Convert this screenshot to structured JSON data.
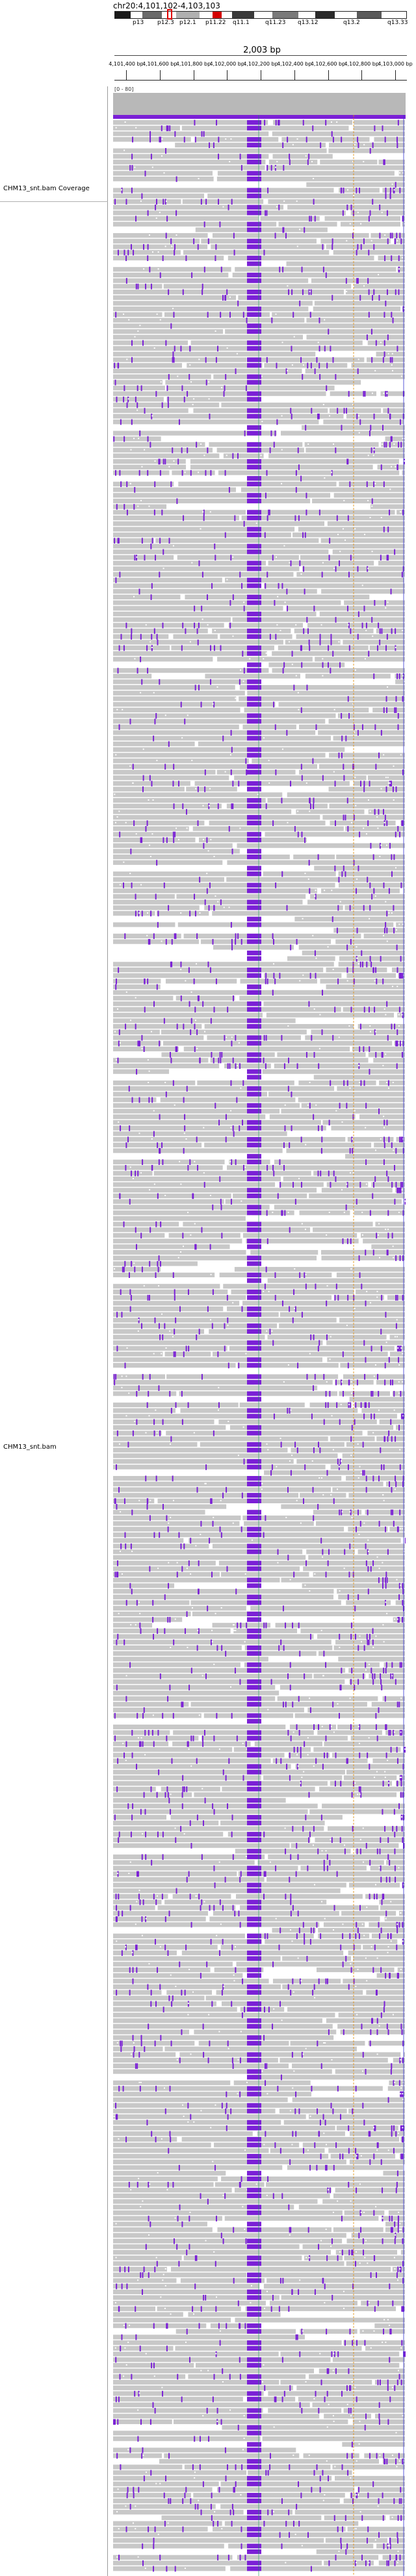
{
  "locus": {
    "text": "chr20:4,101,102-4,103,103"
  },
  "ideogram": {
    "bands": [
      {
        "color": "#1a1a1a"
      },
      {
        "color": "#ffffff"
      },
      {
        "color": "#6a6a6a"
      },
      {
        "color": "#ffffff"
      },
      {
        "color": "#b0b0b0"
      },
      {
        "color": "#ffffff"
      },
      {
        "color": "#d40000"
      },
      {
        "color": "#ffffff"
      },
      {
        "color": "#3a3a3a"
      },
      {
        "color": "#ffffff"
      },
      {
        "color": "#7a7a7a"
      },
      {
        "color": "#ffffff"
      },
      {
        "color": "#2a2a2a"
      },
      {
        "color": "#ffffff"
      },
      {
        "color": "#5a5a5a"
      },
      {
        "color": "#ffffff"
      }
    ],
    "band_labels": [
      "p13",
      "p12.3",
      "p12.1",
      "p11.22",
      "q11.1",
      "q11.23",
      "q13.12",
      "q13.2",
      "q13.33"
    ]
  },
  "ruler": {
    "span_label": "2,003 bp",
    "ticks": [
      "4,101,400 bp",
      "4,101,600 bp",
      "4,101,800 bp",
      "4,102,000 bp",
      "4,102,200 bp",
      "4,102,400 bp",
      "4,102,600 bp",
      "4,102,800 bp",
      "4,103,000 bp"
    ]
  },
  "tracks": {
    "coverage": {
      "name": "CHM13_snt.bam Coverage",
      "range": "[0 - 80]",
      "fill_color": "#b8b8b8"
    },
    "reads": {
      "name": "CHM13_snt.bam",
      "read_color": "#c8c8c8",
      "insertion_color": "#7b20d6",
      "mismatch_color": "#ffffff"
    }
  }
}
